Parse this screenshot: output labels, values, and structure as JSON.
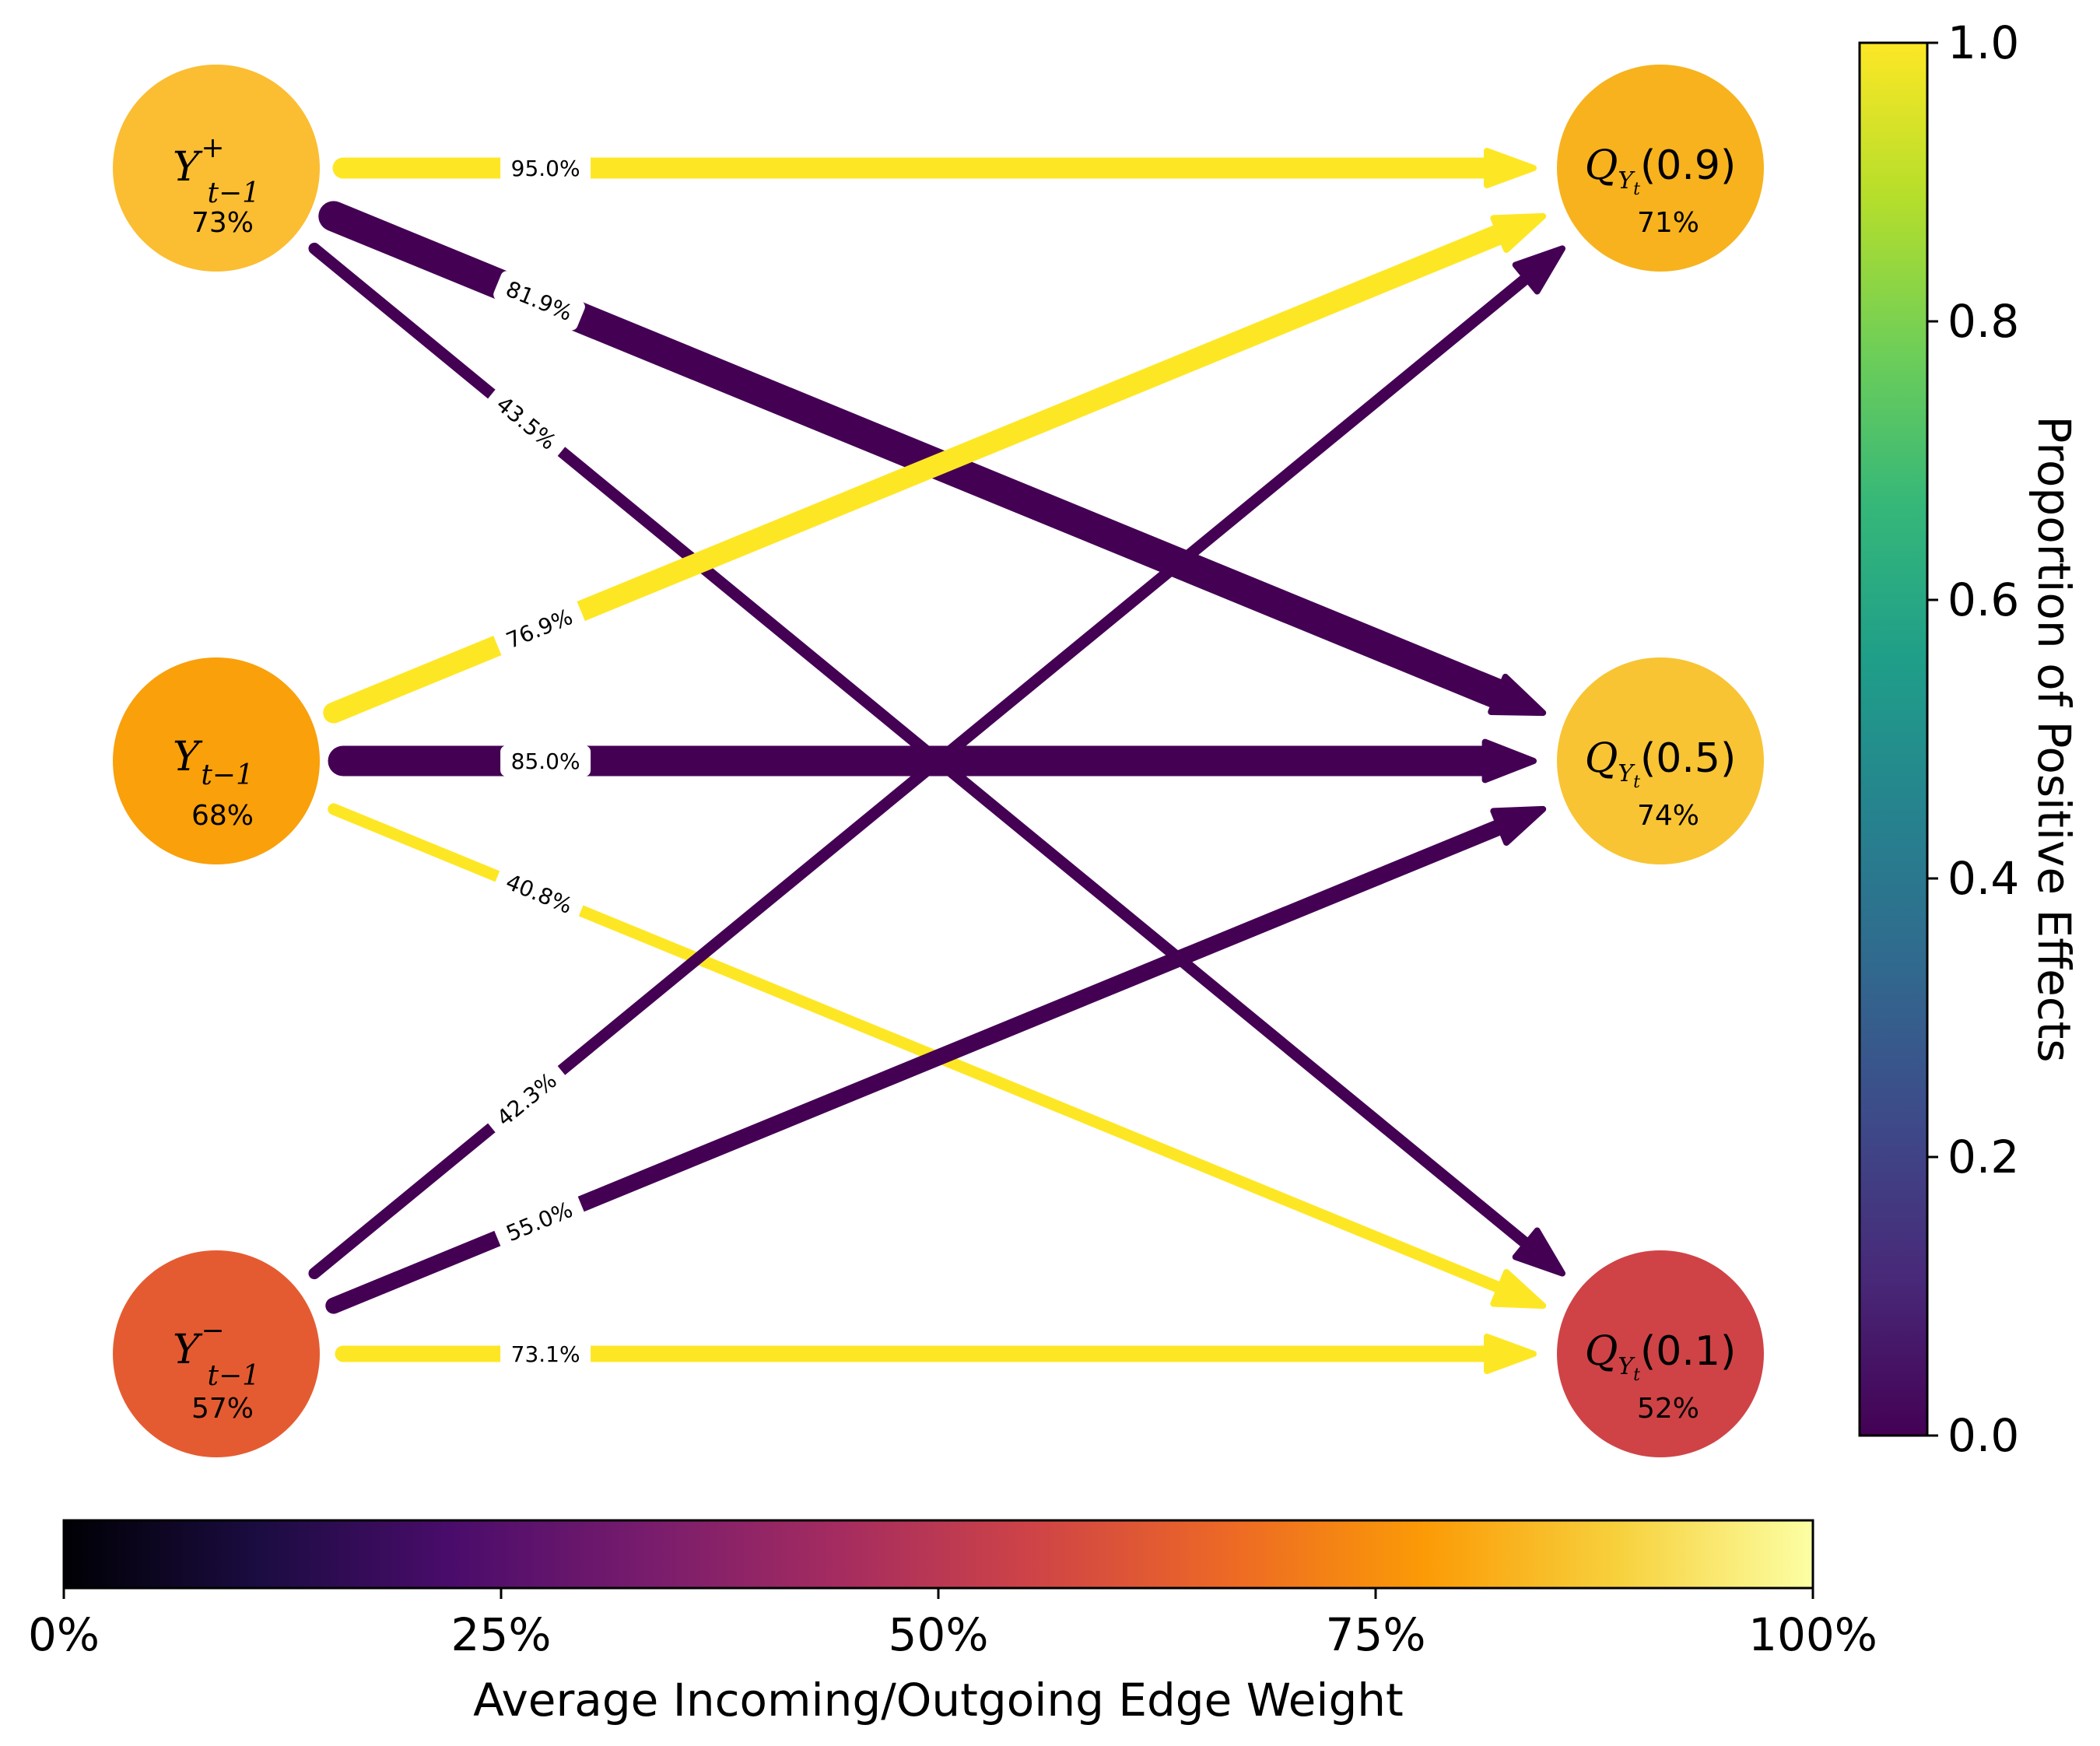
{
  "colors": {
    "edge_positive": "#fde725",
    "edge_negative": "#440154",
    "label_bg": "#ffffff"
  },
  "left_nodes": [
    {
      "id": "yplus",
      "symbol": "Y",
      "sup": "+",
      "sub": "t−1",
      "percent": "73%",
      "color": "#fbbd32"
    },
    {
      "id": "y",
      "symbol": "Y",
      "sup": "",
      "sub": "t−1",
      "percent": "68%",
      "color": "#f9a00b"
    },
    {
      "id": "yminus",
      "symbol": "Y",
      "sup": "−",
      "sub": "t−1",
      "percent": "57%",
      "color": "#e55b31"
    }
  ],
  "right_nodes": [
    {
      "id": "q09",
      "symbol": "Q",
      "sub": "Y",
      "subsub": "t",
      "arg": "(0.9)",
      "percent": "71%",
      "color": "#f7b21d"
    },
    {
      "id": "q05",
      "symbol": "Q",
      "sub": "Y",
      "subsub": "t",
      "arg": "(0.5)",
      "percent": "74%",
      "color": "#f8c434"
    },
    {
      "id": "q01",
      "symbol": "Q",
      "sub": "Y",
      "subsub": "t",
      "arg": "(0.1)",
      "percent": "52%",
      "color": "#cf4346"
    }
  ],
  "edges": [
    {
      "from": "yplus",
      "to": "q09",
      "label": "95.0%",
      "positive": true,
      "weight": 4.5
    },
    {
      "from": "yplus",
      "to": "q05",
      "label": "81.9%",
      "positive": false,
      "weight": 6.5
    },
    {
      "from": "yplus",
      "to": "q01",
      "label": "43.5%",
      "positive": false,
      "weight": 2.5
    },
    {
      "from": "y",
      "to": "q09",
      "label": "76.9%",
      "positive": true,
      "weight": 4.5
    },
    {
      "from": "y",
      "to": "q05",
      "label": "85.0%",
      "positive": false,
      "weight": 6.5
    },
    {
      "from": "y",
      "to": "q01",
      "label": "40.8%",
      "positive": true,
      "weight": 2.5
    },
    {
      "from": "yminus",
      "to": "q09",
      "label": "42.3%",
      "positive": false,
      "weight": 2.5
    },
    {
      "from": "yminus",
      "to": "q05",
      "label": "55.0%",
      "positive": false,
      "weight": 3.5
    },
    {
      "from": "yminus",
      "to": "q01",
      "label": "73.1%",
      "positive": true,
      "weight": 3.5
    }
  ],
  "colorbar_right": {
    "label": "Proportion of Positive Effects",
    "ticks": [
      "0.0",
      "0.2",
      "0.4",
      "0.6",
      "0.8",
      "1.0"
    ],
    "stops": [
      "#440154",
      "#482878",
      "#3e4989",
      "#31688e",
      "#26828e",
      "#1f9e89",
      "#35b779",
      "#6ece58",
      "#b5de2b",
      "#fde725"
    ]
  },
  "colorbar_bottom": {
    "label": "Average Incoming/Outgoing Edge Weight",
    "ticks": [
      "0%",
      "25%",
      "50%",
      "75%",
      "100%"
    ],
    "stops": [
      "#000004",
      "#1b0c41",
      "#4a0c6b",
      "#781c6d",
      "#a52c60",
      "#cf4446",
      "#ed6925",
      "#fb9b06",
      "#f7d13d",
      "#fcffa4"
    ]
  }
}
